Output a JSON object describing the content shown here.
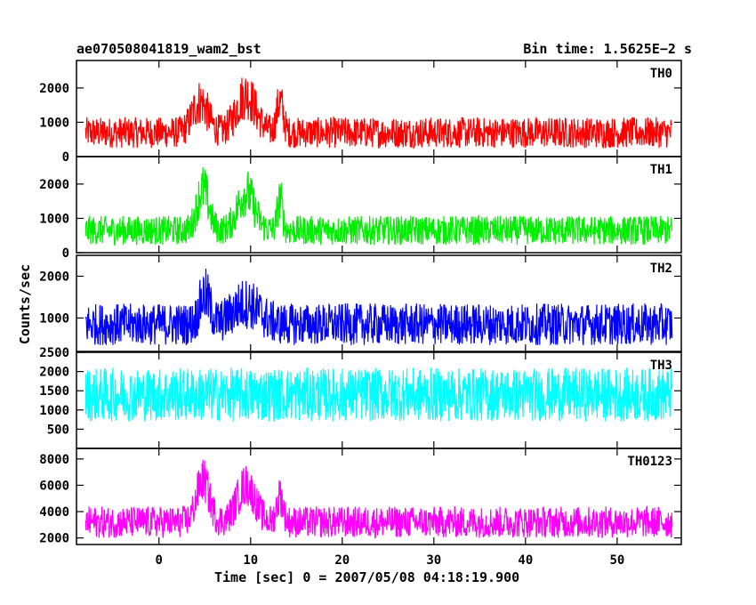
{
  "title_left": "ae070508041819_wam2_bst",
  "title_right": "Bin time: 1.5625E−2 s",
  "xlabel": "Time [sec] 0 = 2007/05/08 04:18:19.900",
  "ylabel": "Counts/sec",
  "chart_data": {
    "type": "line",
    "x_ticks": [
      0,
      10,
      20,
      30,
      40,
      50
    ],
    "x_range": [
      -9,
      57
    ],
    "data_x_range": [
      -8,
      56
    ],
    "panels": [
      {
        "name": "TH0",
        "color": "#ff0000",
        "y_range": [
          0,
          2800
        ],
        "y_ticks": [
          0,
          1000,
          2000
        ],
        "baseline": 700,
        "noise": 900,
        "floor": 0,
        "peaks": [
          [
            4.5,
            900,
            1.2
          ],
          [
            9.5,
            1100,
            1.5
          ],
          [
            13.2,
            900,
            0.5
          ]
        ]
      },
      {
        "name": "TH1",
        "color": "#00ee00",
        "y_range": [
          0,
          2800
        ],
        "y_ticks": [
          0,
          1000,
          2000
        ],
        "baseline": 650,
        "noise": 850,
        "floor": 0,
        "peaks": [
          [
            4.8,
            1200,
            0.9
          ],
          [
            9.5,
            1100,
            1.3
          ],
          [
            13.2,
            900,
            0.4
          ]
        ]
      },
      {
        "name": "TH2",
        "color": "#0000ff",
        "y_range": [
          200,
          2500
        ],
        "y_ticks": [
          1000,
          2000
        ],
        "baseline": 850,
        "noise": 1000,
        "floor": 250,
        "peaks": [
          [
            5.0,
            700,
            0.8
          ],
          [
            9.5,
            500,
            2.0
          ]
        ]
      },
      {
        "name": "TH3",
        "color": "#00ffff",
        "y_range": [
          0,
          2500
        ],
        "y_ticks": [
          500,
          1000,
          1500,
          2000,
          2500
        ],
        "baseline": 1400,
        "noise": 1400,
        "floor": 100,
        "peaks": []
      },
      {
        "name": "TH0123",
        "color": "#ff00ff",
        "y_range": [
          1500,
          8800
        ],
        "y_ticks": [
          2000,
          4000,
          6000,
          8000
        ],
        "baseline": 3200,
        "noise": 2400,
        "floor": 1700,
        "peaks": [
          [
            4.8,
            3200,
            1.0
          ],
          [
            9.5,
            2800,
            1.4
          ],
          [
            13.2,
            2000,
            0.5
          ]
        ]
      }
    ]
  }
}
